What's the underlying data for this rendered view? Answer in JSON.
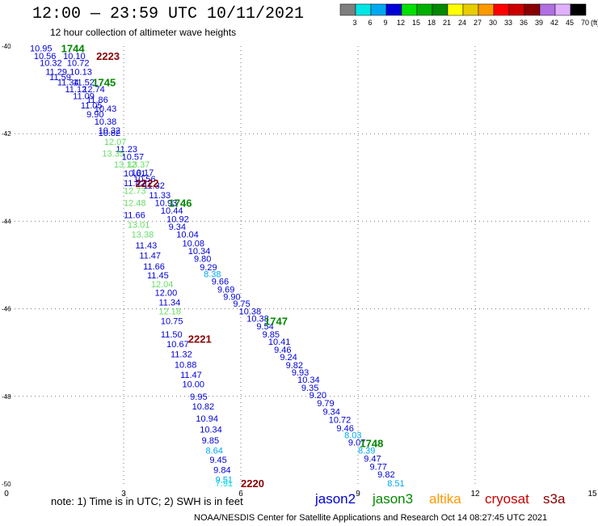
{
  "title": "12:00 — 23:59 UTC 10/11/2021",
  "subtitle": "12 hour collection of altimeter wave heights",
  "colorbar": {
    "labels": [
      "3",
      "6",
      "9",
      "12",
      "15",
      "18",
      "21",
      "24",
      "27",
      "30",
      "33",
      "36",
      "39",
      "42",
      "45",
      "70"
    ],
    "unit": "(ft)",
    "colors": [
      "#7f7f7f",
      "#00e5e5",
      "#00a8f0",
      "#0000d8",
      "#00e000",
      "#00b000",
      "#008800",
      "#ffff00",
      "#e8cc00",
      "#ff9900",
      "#ff0000",
      "#cc0000",
      "#880000",
      "#b070e0",
      "#e0b0ff",
      "#000000"
    ]
  },
  "note": "note:  1) Time is in UTC;  2) SWH is in feet",
  "satellites": [
    {
      "name": "jason2",
      "color": "#0000d8"
    },
    {
      "name": "jason3",
      "color": "#008800"
    },
    {
      "name": "altika",
      "color": "#ff9900"
    },
    {
      "name": "cryosat",
      "color": "#cc0000"
    },
    {
      "name": "s3a",
      "color": "#880000"
    }
  ],
  "credit": "NOAA/NESDIS Center for Satellite Applications and Research    Oct 14 08:27:45 UTC 2021",
  "chart_data": {
    "type": "scatter",
    "title": "12:00 — 23:59 UTC 10/11/2021",
    "subtitle": "12 hour collection of altimeter wave heights",
    "xlim": [
      0,
      15
    ],
    "ylim": [
      -50,
      -40
    ],
    "xticks": [
      "0",
      "3",
      "6",
      "9",
      "12",
      "15"
    ],
    "yticks": [
      "-40",
      "-42",
      "-44",
      "-46",
      "-48",
      "-50"
    ],
    "grid": true,
    "time_labels": [
      {
        "text": "1744",
        "x": 1.4,
        "y": -40.05,
        "color": "#008800"
      },
      {
        "text": "2223",
        "x": 2.3,
        "y": -40.22,
        "color": "#880000"
      },
      {
        "text": "1745",
        "x": 2.2,
        "y": -40.82,
        "color": "#008800"
      },
      {
        "text": "2222",
        "x": 3.3,
        "y": -43.12,
        "color": "#880000"
      },
      {
        "text": "1746",
        "x": 4.15,
        "y": -43.58,
        "color": "#008800"
      },
      {
        "text": "2221",
        "x": 4.65,
        "y": -46.68,
        "color": "#880000"
      },
      {
        "text": "1747",
        "x": 6.6,
        "y": -46.28,
        "color": "#008800"
      },
      {
        "text": "1748",
        "x": 9.05,
        "y": -49.07,
        "color": "#008800"
      },
      {
        "text": "2220",
        "x": 6.0,
        "y": -49.98,
        "color": "#880000"
      }
    ],
    "series": [
      {
        "name": "track 1744-1748",
        "points": [
          {
            "v": "10.95",
            "x": 0.6,
            "y": -40.05,
            "c": "#0000d8"
          },
          {
            "v": "10.10",
            "x": 1.45,
            "y": -40.22,
            "c": "#0000d8"
          },
          {
            "v": "10.56",
            "x": 0.7,
            "y": -40.22,
            "c": "#0000d8"
          },
          {
            "v": "10.72",
            "x": 1.55,
            "y": -40.38,
            "c": "#0000d8"
          },
          {
            "v": "10.32",
            "x": 0.85,
            "y": -40.38,
            "c": "#0000d8"
          },
          {
            "v": "10.13",
            "x": 1.62,
            "y": -40.58,
            "c": "#0000d8"
          },
          {
            "v": "11.29",
            "x": 1.0,
            "y": -40.58,
            "c": "#0000d8"
          },
          {
            "v": "11.59",
            "x": 1.1,
            "y": -40.7,
            "c": "#0000d8"
          },
          {
            "v": "11.34",
            "x": 1.3,
            "y": -40.82,
            "c": "#0000d8"
          },
          {
            "v": "11.52",
            "x": 1.7,
            "y": -40.82,
            "c": "#0000d8"
          },
          {
            "v": "11.12",
            "x": 1.5,
            "y": -40.98,
            "c": "#0000d8"
          },
          {
            "v": "12.74",
            "x": 1.95,
            "y": -40.98,
            "c": "#0000d8"
          },
          {
            "v": "11.09",
            "x": 1.7,
            "y": -41.14,
            "c": "#0000d8"
          },
          {
            "v": "11.86",
            "x": 2.05,
            "y": -41.22,
            "c": "#0000d8"
          },
          {
            "v": "11.05",
            "x": 1.9,
            "y": -41.35,
            "c": "#0000d8"
          },
          {
            "v": "10.43",
            "x": 2.25,
            "y": -41.42,
            "c": "#0000d8"
          },
          {
            "v": "9.90",
            "x": 2.05,
            "y": -41.55,
            "c": "#0000d8"
          },
          {
            "v": "10.38",
            "x": 2.25,
            "y": -41.72,
            "c": "#0000d8"
          },
          {
            "v": "10.32",
            "x": 2.35,
            "y": -41.92,
            "c": "#0000d8"
          },
          {
            "v": "10.82",
            "x": 2.35,
            "y": -41.98,
            "c": "#0000d8"
          },
          {
            "v": "12.07",
            "x": 2.5,
            "y": -42.18,
            "c": "#66dd66"
          },
          {
            "v": "11.23",
            "x": 2.8,
            "y": -42.35,
            "c": "#0000d8"
          },
          {
            "v": "13.35",
            "x": 2.45,
            "y": -42.45,
            "c": "#66dd66"
          },
          {
            "v": "10.57",
            "x": 2.95,
            "y": -42.52,
            "c": "#0000d8"
          },
          {
            "v": "13.12",
            "x": 2.75,
            "y": -42.7,
            "c": "#66dd66"
          },
          {
            "v": "13.37",
            "x": 3.1,
            "y": -42.7,
            "c": "#66dd66"
          },
          {
            "v": "10.61",
            "x": 3.0,
            "y": -42.9,
            "c": "#0000d8"
          },
          {
            "v": "10.17",
            "x": 3.2,
            "y": -42.88,
            "c": "#0000d8"
          },
          {
            "v": "10.56",
            "x": 3.25,
            "y": -43.03,
            "c": "#0000d8"
          },
          {
            "v": "11.42",
            "x": 3.0,
            "y": -43.12,
            "c": "#0000d8"
          },
          {
            "v": "11.32",
            "x": 3.5,
            "y": -43.18,
            "c": "#0000d8"
          },
          {
            "v": "12.73",
            "x": 3.0,
            "y": -43.3,
            "c": "#66dd66"
          },
          {
            "v": "11.33",
            "x": 3.65,
            "y": -43.4,
            "c": "#0000d8"
          },
          {
            "v": "12.48",
            "x": 3.0,
            "y": -43.58,
            "c": "#66dd66"
          },
          {
            "v": "10.93",
            "x": 3.8,
            "y": -43.58,
            "c": "#0000d8"
          },
          {
            "v": "10.44",
            "x": 3.95,
            "y": -43.75,
            "c": "#0000d8"
          },
          {
            "v": "11.66",
            "x": 3.0,
            "y": -43.85,
            "c": "#0000d8"
          },
          {
            "v": "10.92",
            "x": 4.1,
            "y": -43.95,
            "c": "#0000d8"
          },
          {
            "v": "13.01",
            "x": 3.1,
            "y": -44.08,
            "c": "#66dd66"
          },
          {
            "v": "9.34",
            "x": 4.15,
            "y": -44.12,
            "c": "#0000d8"
          },
          {
            "v": "10.04",
            "x": 4.35,
            "y": -44.3,
            "c": "#0000d8"
          },
          {
            "v": "13.38",
            "x": 3.2,
            "y": -44.3,
            "c": "#66dd66"
          },
          {
            "v": "10.08",
            "x": 4.5,
            "y": -44.5,
            "c": "#0000d8"
          },
          {
            "v": "11.43",
            "x": 3.3,
            "y": -44.55,
            "c": "#0000d8"
          },
          {
            "v": "10.34",
            "x": 4.65,
            "y": -44.68,
            "c": "#0000d8"
          },
          {
            "v": "11.47",
            "x": 3.4,
            "y": -44.78,
            "c": "#0000d8"
          },
          {
            "v": "9.80",
            "x": 4.8,
            "y": -44.85,
            "c": "#0000d8"
          },
          {
            "v": "9.29",
            "x": 4.95,
            "y": -45.05,
            "c": "#0000d8"
          },
          {
            "v": "11.66",
            "x": 3.5,
            "y": -45.03,
            "c": "#0000d8"
          },
          {
            "v": "8.38",
            "x": 5.05,
            "y": -45.2,
            "c": "#00a8f0"
          },
          {
            "v": "11.45",
            "x": 3.6,
            "y": -45.23,
            "c": "#0000d8"
          },
          {
            "v": "9.66",
            "x": 5.25,
            "y": -45.37,
            "c": "#0000d8"
          },
          {
            "v": "12.04",
            "x": 3.7,
            "y": -45.43,
            "c": "#66dd66"
          },
          {
            "v": "9.69",
            "x": 5.4,
            "y": -45.55,
            "c": "#0000d8"
          },
          {
            "v": "12.00",
            "x": 3.8,
            "y": -45.63,
            "c": "#0000d8"
          },
          {
            "v": "9.90",
            "x": 5.55,
            "y": -45.72,
            "c": "#0000d8"
          },
          {
            "v": "11.34",
            "x": 3.9,
            "y": -45.85,
            "c": "#0000d8"
          },
          {
            "v": "9.75",
            "x": 5.8,
            "y": -45.88,
            "c": "#0000d8"
          },
          {
            "v": "12.18",
            "x": 3.9,
            "y": -46.05,
            "c": "#66dd66"
          },
          {
            "v": "10.38",
            "x": 5.95,
            "y": -46.05,
            "c": "#0000d8"
          },
          {
            "v": "10.38",
            "x": 6.15,
            "y": -46.22,
            "c": "#0000d8"
          },
          {
            "v": "10.75",
            "x": 3.95,
            "y": -46.28,
            "c": "#0000d8"
          },
          {
            "v": "9.54",
            "x": 6.4,
            "y": -46.4,
            "c": "#0000d8"
          },
          {
            "v": "11.50",
            "x": 3.95,
            "y": -46.58,
            "c": "#0000d8"
          },
          {
            "v": "9.85",
            "x": 6.55,
            "y": -46.58,
            "c": "#0000d8"
          },
          {
            "v": "10.67",
            "x": 4.1,
            "y": -46.8,
            "c": "#0000d8"
          },
          {
            "v": "10.41",
            "x": 6.7,
            "y": -46.75,
            "c": "#0000d8"
          },
          {
            "v": "9.46",
            "x": 6.85,
            "y": -46.93,
            "c": "#0000d8"
          },
          {
            "v": "11.32",
            "x": 4.2,
            "y": -47.03,
            "c": "#0000d8"
          },
          {
            "v": "9.24",
            "x": 7.0,
            "y": -47.1,
            "c": "#0000d8"
          },
          {
            "v": "10.88",
            "x": 4.3,
            "y": -47.27,
            "c": "#0000d8"
          },
          {
            "v": "9.82",
            "x": 7.15,
            "y": -47.28,
            "c": "#0000d8"
          },
          {
            "v": "11.47",
            "x": 4.45,
            "y": -47.5,
            "c": "#0000d8"
          },
          {
            "v": "9.93",
            "x": 7.3,
            "y": -47.45,
            "c": "#0000d8"
          },
          {
            "v": "10.34",
            "x": 7.45,
            "y": -47.62,
            "c": "#0000d8"
          },
          {
            "v": "10.00",
            "x": 4.5,
            "y": -47.72,
            "c": "#0000d8"
          },
          {
            "v": "9.35",
            "x": 7.55,
            "y": -47.8,
            "c": "#0000d8"
          },
          {
            "v": "9.20",
            "x": 7.75,
            "y": -47.97,
            "c": "#0000d8"
          },
          {
            "v": "9.95",
            "x": 4.7,
            "y": -48.0,
            "c": "#0000d8"
          },
          {
            "v": "9.79",
            "x": 7.95,
            "y": -48.15,
            "c": "#0000d8"
          },
          {
            "v": "10.82",
            "x": 4.75,
            "y": -48.23,
            "c": "#0000d8"
          },
          {
            "v": "9.34",
            "x": 8.1,
            "y": -48.35,
            "c": "#0000d8"
          },
          {
            "v": "10.94",
            "x": 4.85,
            "y": -48.5,
            "c": "#0000d8"
          },
          {
            "v": "10.72",
            "x": 8.25,
            "y": -48.53,
            "c": "#0000d8"
          },
          {
            "v": "9.46",
            "x": 8.45,
            "y": -48.72,
            "c": "#0000d8"
          },
          {
            "v": "10.34",
            "x": 4.95,
            "y": -48.75,
            "c": "#0000d8"
          },
          {
            "v": "8.03",
            "x": 8.65,
            "y": -48.88,
            "c": "#00a8f0"
          },
          {
            "v": "9.85",
            "x": 5.0,
            "y": -49.0,
            "c": "#0000d8"
          },
          {
            "v": "9.07",
            "x": 8.75,
            "y": -49.05,
            "c": "#0000d8"
          },
          {
            "v": "8.64",
            "x": 5.1,
            "y": -49.23,
            "c": "#00a8f0"
          },
          {
            "v": "8.39",
            "x": 9.0,
            "y": -49.23,
            "c": "#00a8f0"
          },
          {
            "v": "9.45",
            "x": 5.2,
            "y": -49.45,
            "c": "#0000d8"
          },
          {
            "v": "9.47",
            "x": 9.15,
            "y": -49.42,
            "c": "#0000d8"
          },
          {
            "v": "9.84",
            "x": 5.3,
            "y": -49.68,
            "c": "#0000d8"
          },
          {
            "v": "9.77",
            "x": 9.3,
            "y": -49.6,
            "c": "#0000d8"
          },
          {
            "v": "9.82",
            "x": 9.5,
            "y": -49.78,
            "c": "#0000d8"
          },
          {
            "v": "9.51",
            "x": 5.35,
            "y": -49.9,
            "c": "#00a8f0"
          },
          {
            "v": "7.91",
            "x": 5.35,
            "y": -49.98,
            "c": "#00e5e5"
          },
          {
            "v": "8.51",
            "x": 9.75,
            "y": -49.98,
            "c": "#00a8f0"
          }
        ]
      }
    ]
  }
}
